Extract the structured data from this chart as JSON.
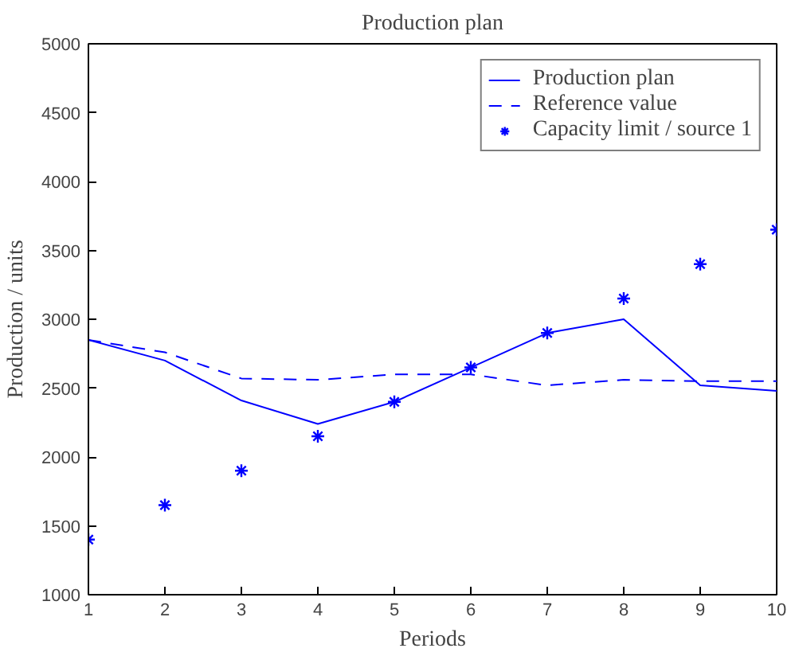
{
  "chart_data": {
    "type": "line",
    "title": "Production plan",
    "xlabel": "Periods",
    "ylabel": "Production / units",
    "x": [
      1,
      2,
      3,
      4,
      5,
      6,
      7,
      8,
      9,
      10
    ],
    "series": [
      {
        "name": "Production plan",
        "color": "#0000ff",
        "line_style": "solid",
        "values": [
          2850,
          2700,
          2410,
          2240,
          2400,
          2650,
          2900,
          3000,
          2520,
          2480
        ]
      },
      {
        "name": "Reference value",
        "color": "#0000ff",
        "line_style": "dashed",
        "values": [
          2850,
          2760,
          2570,
          2560,
          2600,
          2600,
          2520,
          2560,
          2550,
          2550
        ]
      },
      {
        "name": "Capacity limit / source 1",
        "type": "scatter",
        "marker": "cross",
        "color": "#0000ff",
        "values": [
          1400,
          1650,
          1900,
          2150,
          2400,
          2650,
          2900,
          3150,
          3400,
          3650
        ]
      }
    ],
    "xlim": [
      1,
      10
    ],
    "ylim": [
      1000,
      5000
    ],
    "xticks": [
      1,
      2,
      3,
      4,
      5,
      6,
      7,
      8,
      9,
      10
    ],
    "yticks": [
      1000,
      1500,
      2000,
      2500,
      3000,
      3500,
      4000,
      4500,
      5000
    ],
    "legend": "top right"
  }
}
